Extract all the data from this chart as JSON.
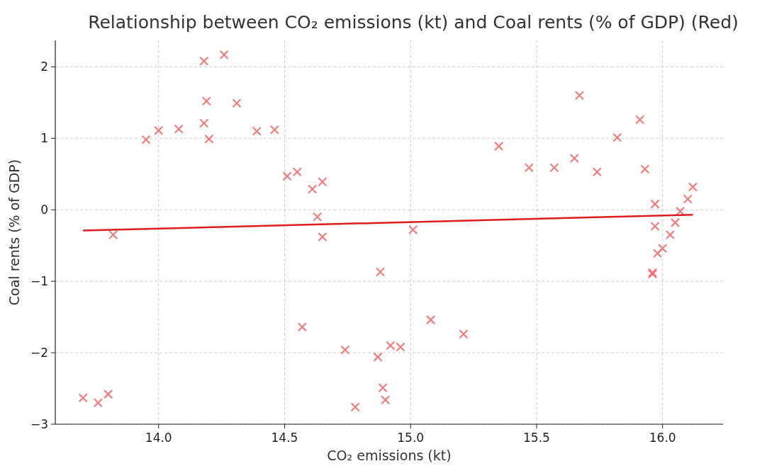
{
  "chart_data": {
    "type": "scatter",
    "title": "Relationship between CO₂ emissions (kt) and Coal rents (% of GDP) (Red)",
    "xlabel": "CO₂ emissions (kt)",
    "ylabel": "Coal rents (% of GDP)",
    "xlim": [
      13.59,
      16.24
    ],
    "ylim": [
      -3,
      2.37
    ],
    "xticks": [
      {
        "value": 14,
        "label": "14.0"
      },
      {
        "value": 14.5,
        "label": "14.5"
      },
      {
        "value": 15,
        "label": "15.0"
      },
      {
        "value": 15.5,
        "label": "15.5"
      },
      {
        "value": 16,
        "label": "16.0"
      }
    ],
    "yticks": [
      {
        "value": -3,
        "label": "−3"
      },
      {
        "value": -2,
        "label": "−2"
      },
      {
        "value": -1,
        "label": "−1"
      },
      0,
      1,
      2
    ],
    "grid": true,
    "series": [
      {
        "color": "#e8696b",
        "marker": "cross",
        "x": [
          13.7,
          13.76,
          13.8,
          13.82,
          13.95,
          14.0,
          14.08,
          14.18,
          14.26,
          14.19,
          14.18,
          14.2,
          14.31,
          14.39,
          14.46,
          14.51,
          14.55,
          14.61,
          14.65,
          14.63,
          14.65,
          14.57,
          14.74,
          14.78,
          14.87,
          14.88,
          14.89,
          14.9,
          14.92,
          14.96,
          15.01,
          15.08,
          15.21,
          15.35,
          15.47,
          15.57,
          15.65,
          15.67,
          15.74,
          15.82,
          15.91,
          15.93,
          15.97,
          15.97,
          15.96,
          15.96,
          15.98,
          16.0,
          16.03,
          16.05,
          16.07,
          16.1,
          16.12
        ],
        "values": [
          -2.63,
          -2.7,
          -2.58,
          -0.35,
          0.98,
          1.11,
          1.13,
          2.08,
          2.17,
          1.52,
          1.21,
          0.99,
          1.49,
          1.1,
          1.12,
          0.47,
          0.53,
          0.29,
          0.39,
          -0.1,
          -0.38,
          -1.64,
          -1.96,
          -2.76,
          -2.06,
          -0.87,
          -2.49,
          -2.66,
          -1.9,
          -1.92,
          -0.28,
          -1.54,
          -1.74,
          0.89,
          0.59,
          0.59,
          0.72,
          1.6,
          0.53,
          1.01,
          1.26,
          0.57,
          0.08,
          -0.23,
          -0.88,
          -0.9,
          -0.61,
          -0.54,
          -0.35,
          -0.18,
          -0.02,
          0.15,
          0.32
        ]
      },
      {
        "type": "line",
        "color": "#dd1c1c",
        "marker": "none",
        "line_style": "solid",
        "x": [
          13.7,
          16.12
        ],
        "values": [
          -0.29,
          -0.07
        ]
      }
    ]
  }
}
